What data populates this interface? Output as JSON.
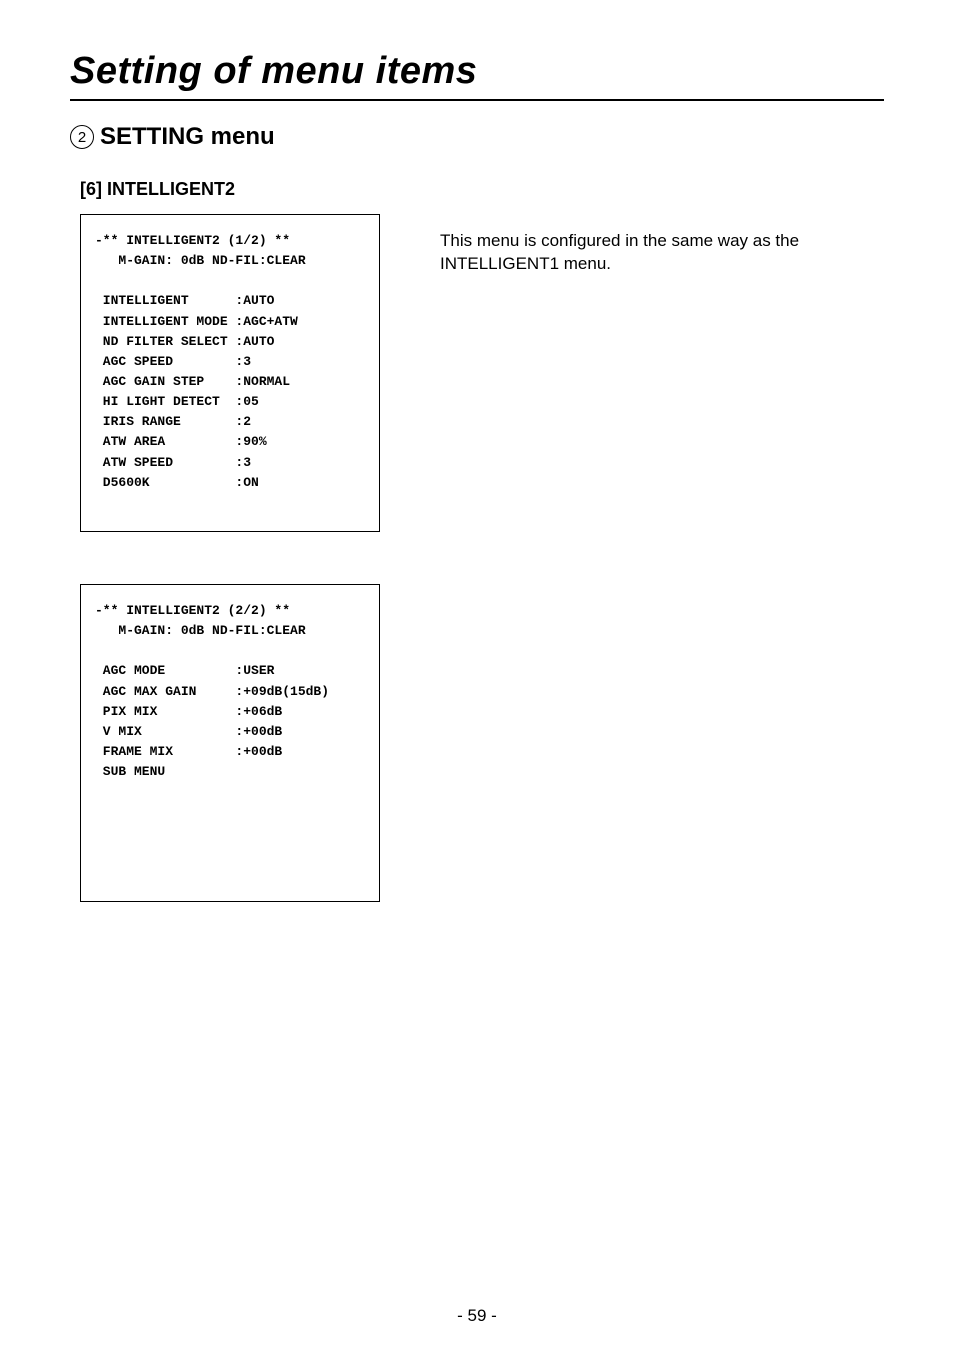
{
  "page": {
    "title": "Setting of menu items",
    "section_number": "2",
    "section_label": "SETTING menu",
    "subsection": "[6] INTELLIGENT2",
    "page_number": "- 59 -"
  },
  "description": "This menu is configured in the same way as the INTELLIGENT1 menu.",
  "menu1": {
    "header1": "-** INTELLIGENT2 (1/2) **",
    "header2": "   M-GAIN: 0dB ND-FIL:CLEAR",
    "rows": [
      {
        "label": " INTELLIGENT      ",
        "value": ":AUTO"
      },
      {
        "label": " INTELLIGENT MODE ",
        "value": ":AGC+ATW"
      },
      {
        "label": " ND FILTER SELECT ",
        "value": ":AUTO"
      },
      {
        "label": " AGC SPEED        ",
        "value": ":3"
      },
      {
        "label": " AGC GAIN STEP    ",
        "value": ":NORMAL"
      },
      {
        "label": " HI LIGHT DETECT  ",
        "value": ":05"
      },
      {
        "label": " IRIS RANGE       ",
        "value": ":2"
      },
      {
        "label": " ATW AREA         ",
        "value": ":90%"
      },
      {
        "label": " ATW SPEED        ",
        "value": ":3"
      },
      {
        "label": " D5600K           ",
        "value": ":ON"
      }
    ]
  },
  "menu2": {
    "header1": "-** INTELLIGENT2 (2/2) **",
    "header2": "   M-GAIN: 0dB ND-FIL:CLEAR",
    "rows": [
      {
        "label": " AGC MODE         ",
        "value": ":USER"
      },
      {
        "label": " AGC MAX GAIN     ",
        "value": ":+09dB(15dB)"
      },
      {
        "label": " PIX MIX          ",
        "value": ":+06dB"
      },
      {
        "label": " V MIX            ",
        "value": ":+00dB"
      },
      {
        "label": " FRAME MIX        ",
        "value": ":+00dB"
      },
      {
        "label": " SUB MENU",
        "value": ""
      }
    ],
    "trailing_blank_lines": 6
  }
}
